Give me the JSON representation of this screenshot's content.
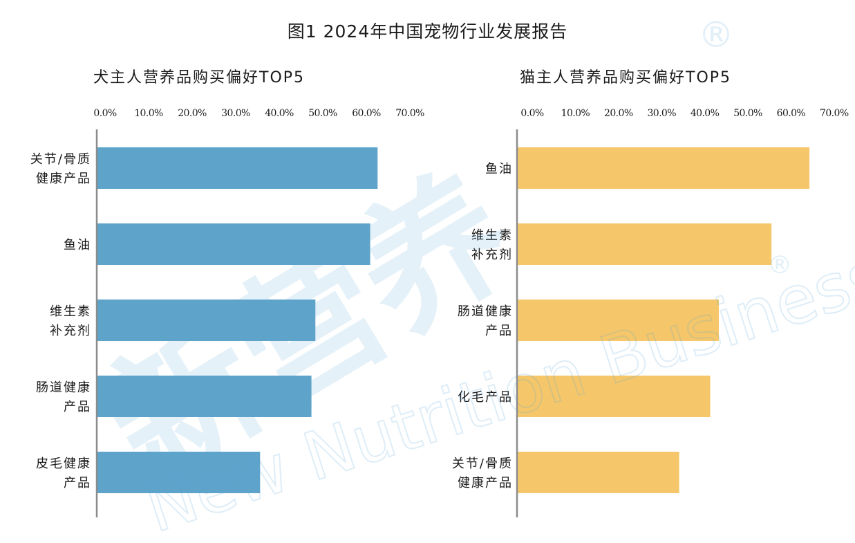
{
  "title": "图1 2024年中国宠物行业发展报告",
  "watermark": {
    "main_text": "新营养",
    "sub_text": "New Nutrition Business",
    "mark": "®"
  },
  "chart_data": [
    {
      "type": "bar",
      "orientation": "horizontal",
      "title": "犬主人营养品购买偏好TOP5",
      "categories": [
        "关节/骨质\n健康产品",
        "鱼油",
        "维生素\n补充剂",
        "肠道健康\n产品",
        "皮毛健康\n产品"
      ],
      "values": [
        64.5,
        62.8,
        50.2,
        49.3,
        37.5
      ],
      "xlim": [
        0,
        70
      ],
      "ticks": [
        0,
        10,
        20,
        30,
        40,
        50,
        60,
        70
      ],
      "tick_labels": [
        "0.0%",
        "10.0%",
        "20.0%",
        "30.0%",
        "40.0%",
        "50.0%",
        "60.0%",
        "70.0%"
      ],
      "axis_position": "top",
      "grid": false,
      "legend": "none",
      "color": "#5ea3c9"
    },
    {
      "type": "bar",
      "orientation": "horizontal",
      "title": "猫主人营养品购买偏好TOP5",
      "categories": [
        "鱼油",
        "维生素\n补充剂",
        "肠道健康\n产品",
        "化毛产品",
        "关节/骨质\n健康产品"
      ],
      "values": [
        67.8,
        59.0,
        46.8,
        44.8,
        37.6
      ],
      "xlim": [
        0,
        70
      ],
      "ticks": [
        0,
        10,
        20,
        30,
        40,
        50,
        60,
        70
      ],
      "tick_labels": [
        "0.0%",
        "10.0%",
        "20.0%",
        "30.0%",
        "40.0%",
        "50.0%",
        "60.0%",
        "70.0%"
      ],
      "axis_position": "top",
      "grid": false,
      "legend": "none",
      "color": "#f5c76a"
    }
  ]
}
